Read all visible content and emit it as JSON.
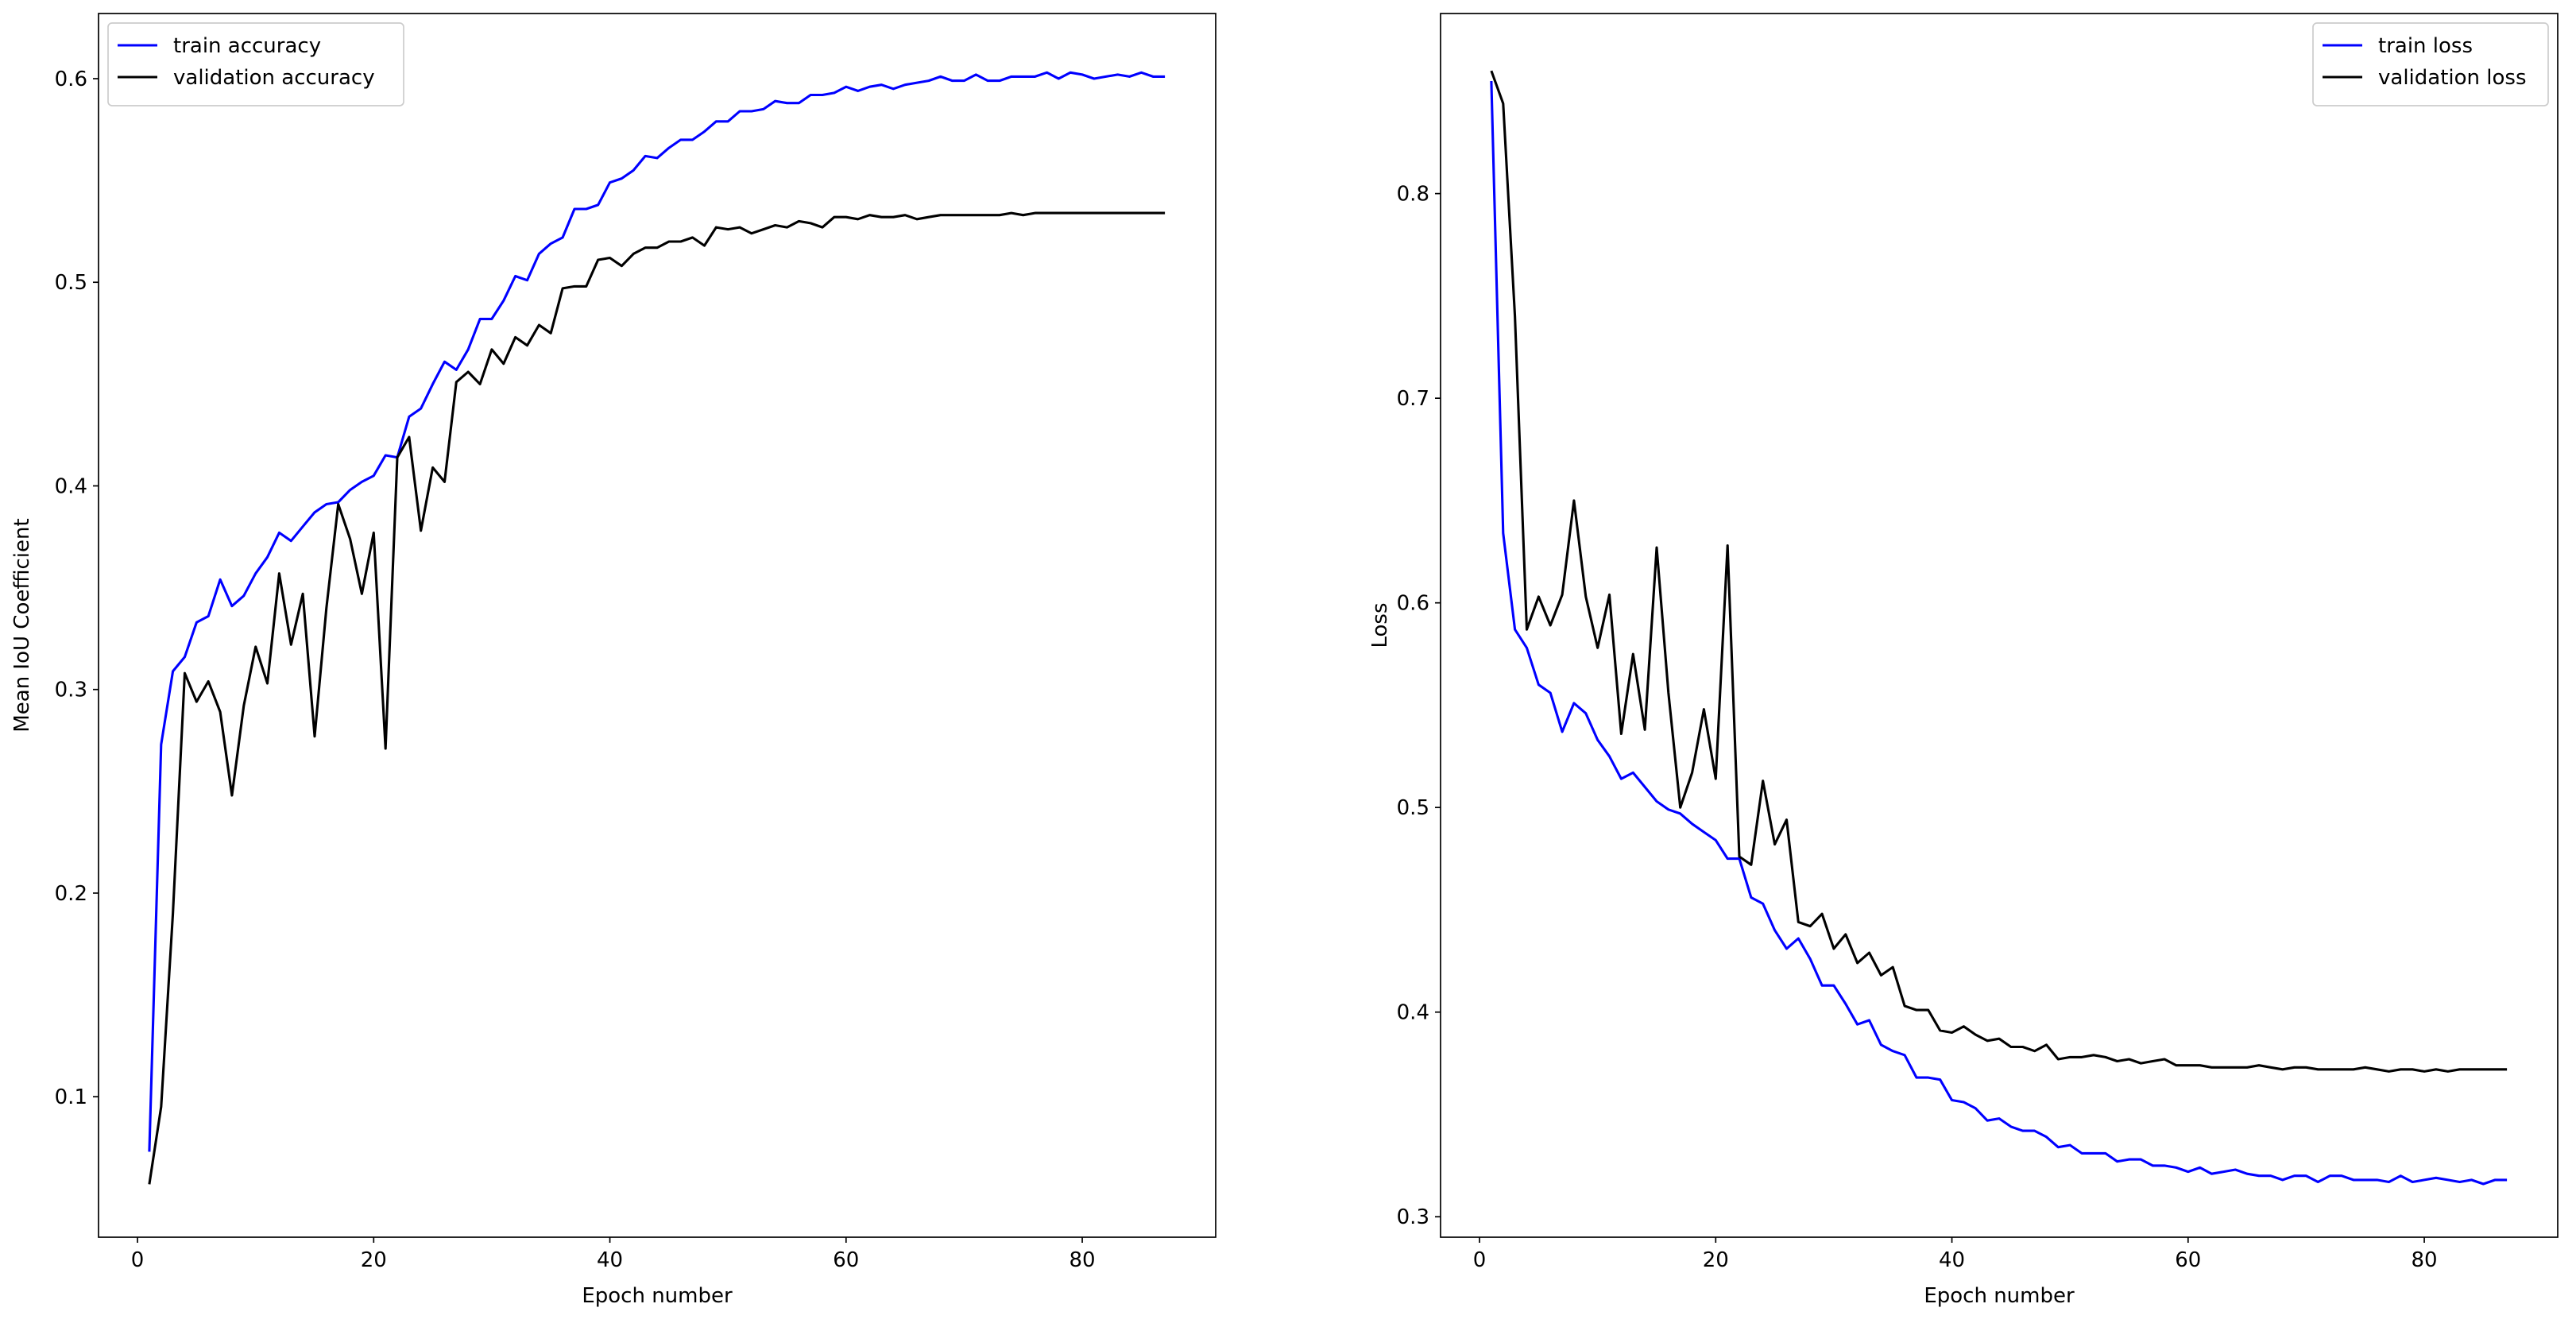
{
  "chart_data": [
    {
      "type": "line",
      "title": "",
      "xlabel": "Epoch number",
      "ylabel": "Mean IoU Coefficient",
      "xlim": [
        -3.3,
        91.3
      ],
      "ylim": [
        0.031,
        0.632
      ],
      "xticks": [
        0,
        20,
        40,
        60,
        80
      ],
      "yticks": [
        0.1,
        0.2,
        0.3,
        0.4,
        0.5,
        0.6
      ],
      "grid": false,
      "legend_position": "top-left",
      "x": [
        1,
        2,
        3,
        4,
        5,
        6,
        7,
        8,
        9,
        10,
        11,
        12,
        13,
        14,
        15,
        16,
        17,
        18,
        19,
        20,
        21,
        22,
        23,
        24,
        25,
        26,
        27,
        28,
        29,
        30,
        31,
        32,
        33,
        34,
        35,
        36,
        37,
        38,
        39,
        40,
        41,
        42,
        43,
        44,
        45,
        46,
        47,
        48,
        49,
        50,
        51,
        52,
        53,
        54,
        55,
        56,
        57,
        58,
        59,
        60,
        61,
        62,
        63,
        64,
        65,
        66,
        67,
        68,
        69,
        70,
        71,
        72,
        73,
        74,
        75,
        76,
        77,
        78,
        79,
        80,
        81,
        82,
        83,
        84,
        85,
        86,
        87
      ],
      "series": [
        {
          "name": "train accuracy",
          "color": "#0000ff",
          "values": [
            0.073,
            0.273,
            0.309,
            0.316,
            0.333,
            0.336,
            0.354,
            0.341,
            0.346,
            0.357,
            0.365,
            0.377,
            0.373,
            0.38,
            0.387,
            0.391,
            0.392,
            0.398,
            0.402,
            0.405,
            0.415,
            0.414,
            0.434,
            0.438,
            0.45,
            0.461,
            0.457,
            0.467,
            0.482,
            0.482,
            0.491,
            0.503,
            0.501,
            0.514,
            0.519,
            0.522,
            0.536,
            0.536,
            0.538,
            0.549,
            0.551,
            0.555,
            0.562,
            0.561,
            0.566,
            0.57,
            0.57,
            0.574,
            0.579,
            0.579,
            0.584,
            0.584,
            0.585,
            0.589,
            0.588,
            0.588,
            0.592,
            0.592,
            0.593,
            0.596,
            0.594,
            0.596,
            0.597,
            0.595,
            0.597,
            0.598,
            0.599,
            0.601,
            0.599,
            0.599,
            0.602,
            0.599,
            0.599,
            0.601,
            0.601,
            0.601,
            0.603,
            0.6,
            0.603,
            0.602,
            0.6,
            0.601,
            0.602,
            0.601,
            0.603,
            0.601,
            0.601
          ]
        },
        {
          "name": "validation accuracy",
          "color": "#000000",
          "values": [
            0.057,
            0.095,
            0.19,
            0.308,
            0.294,
            0.304,
            0.289,
            0.248,
            0.292,
            0.321,
            0.303,
            0.357,
            0.322,
            0.347,
            0.277,
            0.34,
            0.391,
            0.374,
            0.347,
            0.377,
            0.271,
            0.414,
            0.424,
            0.378,
            0.409,
            0.402,
            0.451,
            0.456,
            0.45,
            0.467,
            0.46,
            0.473,
            0.469,
            0.479,
            0.475,
            0.497,
            0.498,
            0.498,
            0.511,
            0.512,
            0.508,
            0.514,
            0.517,
            0.517,
            0.52,
            0.52,
            0.522,
            0.518,
            0.527,
            0.526,
            0.527,
            0.524,
            0.526,
            0.528,
            0.527,
            0.53,
            0.529,
            0.527,
            0.532,
            0.532,
            0.531,
            0.533,
            0.532,
            0.532,
            0.533,
            0.531,
            0.532,
            0.533,
            0.533,
            0.533,
            0.533,
            0.533,
            0.533,
            0.534,
            0.533,
            0.534,
            0.534,
            0.534,
            0.534,
            0.534,
            0.534,
            0.534,
            0.534,
            0.534,
            0.534,
            0.534,
            0.534
          ]
        }
      ]
    },
    {
      "type": "line",
      "title": "",
      "xlabel": "Epoch number",
      "ylabel": "Loss",
      "xlim": [
        -3.3,
        91.3
      ],
      "ylim": [
        0.29,
        0.888
      ],
      "xticks": [
        0,
        20,
        40,
        60,
        80
      ],
      "yticks": [
        0.3,
        0.4,
        0.5,
        0.6,
        0.7,
        0.8
      ],
      "grid": false,
      "legend_position": "top-right",
      "x": [
        1,
        2,
        3,
        4,
        5,
        6,
        7,
        8,
        9,
        10,
        11,
        12,
        13,
        14,
        15,
        16,
        17,
        18,
        19,
        20,
        21,
        22,
        23,
        24,
        25,
        26,
        27,
        28,
        29,
        30,
        31,
        32,
        33,
        34,
        35,
        36,
        37,
        38,
        39,
        40,
        41,
        42,
        43,
        44,
        45,
        46,
        47,
        48,
        49,
        50,
        51,
        52,
        53,
        54,
        55,
        56,
        57,
        58,
        59,
        60,
        61,
        62,
        63,
        64,
        65,
        66,
        67,
        68,
        69,
        70,
        71,
        72,
        73,
        74,
        75,
        76,
        77,
        78,
        79,
        80,
        81,
        82,
        83,
        84,
        85,
        86,
        87
      ],
      "series": [
        {
          "name": "train loss",
          "color": "#0000ff",
          "values": [
            0.855,
            0.634,
            0.587,
            0.578,
            0.56,
            0.556,
            0.537,
            0.551,
            0.546,
            0.533,
            0.525,
            0.514,
            0.517,
            0.51,
            0.503,
            0.499,
            0.497,
            0.492,
            0.488,
            0.484,
            0.475,
            0.475,
            0.456,
            0.453,
            0.44,
            0.431,
            0.436,
            0.426,
            0.413,
            0.413,
            0.404,
            0.394,
            0.396,
            0.384,
            0.381,
            0.379,
            0.368,
            0.368,
            0.367,
            0.357,
            0.356,
            0.353,
            0.347,
            0.348,
            0.344,
            0.342,
            0.342,
            0.339,
            0.334,
            0.335,
            0.331,
            0.331,
            0.331,
            0.327,
            0.328,
            0.328,
            0.325,
            0.325,
            0.324,
            0.322,
            0.324,
            0.321,
            0.322,
            0.323,
            0.321,
            0.32,
            0.32,
            0.318,
            0.32,
            0.32,
            0.317,
            0.32,
            0.32,
            0.318,
            0.318,
            0.318,
            0.317,
            0.32,
            0.317,
            0.318,
            0.319,
            0.318,
            0.317,
            0.318,
            0.316,
            0.318,
            0.318
          ]
        },
        {
          "name": "validation loss",
          "color": "#000000",
          "values": [
            0.86,
            0.844,
            0.74,
            0.587,
            0.603,
            0.589,
            0.604,
            0.65,
            0.603,
            0.578,
            0.604,
            0.536,
            0.575,
            0.538,
            0.627,
            0.556,
            0.5,
            0.517,
            0.548,
            0.514,
            0.628,
            0.476,
            0.472,
            0.513,
            0.482,
            0.494,
            0.444,
            0.442,
            0.448,
            0.431,
            0.438,
            0.424,
            0.429,
            0.418,
            0.422,
            0.403,
            0.401,
            0.401,
            0.391,
            0.39,
            0.393,
            0.389,
            0.386,
            0.387,
            0.383,
            0.383,
            0.381,
            0.384,
            0.377,
            0.378,
            0.378,
            0.379,
            0.378,
            0.376,
            0.377,
            0.375,
            0.376,
            0.377,
            0.374,
            0.374,
            0.374,
            0.373,
            0.373,
            0.373,
            0.373,
            0.374,
            0.373,
            0.372,
            0.373,
            0.373,
            0.372,
            0.372,
            0.372,
            0.372,
            0.373,
            0.372,
            0.371,
            0.372,
            0.372,
            0.371,
            0.372,
            0.371,
            0.372,
            0.372,
            0.372,
            0.372,
            0.372
          ]
        }
      ]
    }
  ]
}
